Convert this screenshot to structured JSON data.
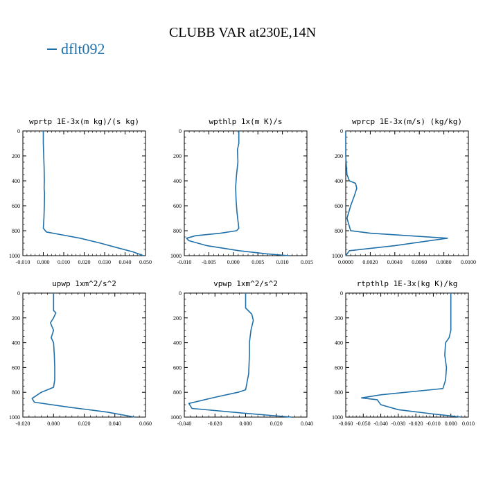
{
  "figure": {
    "title": "CLUBB VAR at230E,14N",
    "legend_label": "dflt092",
    "line_color": "#1f6fa8"
  },
  "chart_data": [
    {
      "type": "line",
      "title": "wprtp  1E-3x(m kg)/(s kg)",
      "xlim": [
        -0.01,
        0.05
      ],
      "xticks": [
        "-0.010",
        "0.000",
        "0.010",
        "0.020",
        "0.030",
        "0.040",
        "0.050"
      ],
      "ylim": [
        1000,
        0
      ],
      "yticks": [
        "0",
        "200",
        "400",
        "600",
        "800",
        "1000"
      ],
      "series": [
        {
          "name": "dflt092",
          "x": [
            0.0,
            0.0,
            0.0002,
            0.0004,
            0.0005,
            0.0004,
            0.0006,
            0.0005,
            0.0003,
            0.0,
            0.0015,
            0.008,
            0.018,
            0.028,
            0.037,
            0.044,
            0.049
          ],
          "y": [
            0,
            100,
            200,
            300,
            400,
            460,
            500,
            600,
            700,
            780,
            810,
            830,
            860,
            900,
            940,
            970,
            1000
          ]
        }
      ]
    },
    {
      "type": "line",
      "title": "wpthlp  1x(m K)/s",
      "xlim": [
        -0.012,
        0.015
      ],
      "xticks": [
        "-0.010",
        "-0.005",
        "0.000",
        "0.005",
        "0.010",
        "0.015"
      ],
      "ylim": [
        1000,
        0
      ],
      "yticks": [
        "0",
        "200",
        "400",
        "600",
        "800",
        "1000"
      ],
      "series": [
        {
          "name": "dflt092",
          "x": [
            0.0,
            0.0,
            -0.0003,
            -0.0002,
            -0.0005,
            -0.0007,
            -0.0006,
            -0.0004,
            0.0,
            -0.0005,
            -0.004,
            -0.0095,
            -0.0115,
            -0.011,
            -0.007,
            0.0,
            0.006,
            0.011
          ],
          "y": [
            0,
            100,
            150,
            250,
            350,
            450,
            550,
            650,
            780,
            800,
            820,
            840,
            860,
            880,
            920,
            960,
            985,
            1000
          ]
        }
      ]
    },
    {
      "type": "line",
      "title": "wprcp  1E-3x(m/s) (kg/kg)",
      "xlim": [
        0,
        0.01
      ],
      "xticks": [
        "0.0000",
        "0.0020",
        "0.0040",
        "0.0060",
        "0.0080",
        "0.0100"
      ],
      "ylim": [
        1000,
        0
      ],
      "yticks": [
        "0",
        "200",
        "400",
        "600",
        "800",
        "1000"
      ],
      "series": [
        {
          "name": "dflt092",
          "x": [
            0.0,
            0.0,
            0.0001,
            0.0003,
            0.0008,
            0.0009,
            0.0007,
            0.0004,
            0.0001,
            0.0004,
            0.002,
            0.0083,
            0.004,
            0.0003,
            0.0
          ],
          "y": [
            0,
            200,
            350,
            400,
            420,
            460,
            520,
            600,
            700,
            800,
            820,
            860,
            920,
            960,
            1000
          ]
        }
      ]
    },
    {
      "type": "line",
      "title": "upwp  1xm^2/s^2",
      "xlim": [
        -0.02,
        0.06
      ],
      "xticks": [
        "-0.020",
        "0.000",
        "0.020",
        "0.040",
        "0.060"
      ],
      "ylim": [
        1000,
        0
      ],
      "yticks": [
        "0",
        "200",
        "400",
        "600",
        "800",
        "1000"
      ],
      "series": [
        {
          "name": "dflt092",
          "x": [
            0.0,
            0.0,
            0.0015,
            0.0,
            -0.002,
            0.0,
            -0.0015,
            0.0,
            0.0005,
            0.0008,
            0.0008,
            0.0,
            -0.008,
            -0.014,
            -0.0125,
            0.01,
            0.035,
            0.053
          ],
          "y": [
            0,
            140,
            160,
            200,
            240,
            300,
            360,
            400,
            500,
            600,
            700,
            760,
            800,
            850,
            880,
            920,
            960,
            1000
          ]
        }
      ]
    },
    {
      "type": "line",
      "title": "vpwp  1xm^2/s^2",
      "xlim": [
        -0.04,
        0.04
      ],
      "xticks": [
        "-0.040",
        "-0.020",
        "0.000",
        "0.020",
        "0.040"
      ],
      "ylim": [
        1000,
        0
      ],
      "yticks": [
        "0",
        "200",
        "400",
        "600",
        "800",
        "1000"
      ],
      "series": [
        {
          "name": "dflt092",
          "x": [
            0.0,
            0.0,
            0.004,
            0.005,
            0.0035,
            0.0025,
            0.0025,
            0.002,
            0.0,
            -0.005,
            -0.02,
            -0.037,
            -0.035,
            0.0,
            0.03
          ],
          "y": [
            0,
            120,
            170,
            220,
            300,
            400,
            500,
            650,
            780,
            800,
            840,
            890,
            930,
            970,
            1000
          ]
        }
      ]
    },
    {
      "type": "line",
      "title": "rtpthlp  1E-3x(kg K)/kg",
      "xlim": [
        -0.06,
        0.01
      ],
      "xticks": [
        "-0.060",
        "-0.050",
        "-0.040",
        "-0.030",
        "-0.020",
        "-0.010",
        "0.000",
        "0.010"
      ],
      "ylim": [
        1000,
        0
      ],
      "yticks": [
        "0",
        "200",
        "400",
        "600",
        "800",
        "1000"
      ],
      "series": [
        {
          "name": "dflt092",
          "x": [
            0.0,
            0.0,
            -0.001,
            -0.003,
            -0.0035,
            -0.0025,
            -0.003,
            -0.0045,
            -0.04,
            -0.051,
            -0.042,
            -0.04,
            -0.03,
            -0.01,
            0.006
          ],
          "y": [
            0,
            300,
            360,
            400,
            500,
            600,
            700,
            770,
            820,
            845,
            860,
            900,
            940,
            975,
            1000
          ]
        }
      ]
    }
  ]
}
